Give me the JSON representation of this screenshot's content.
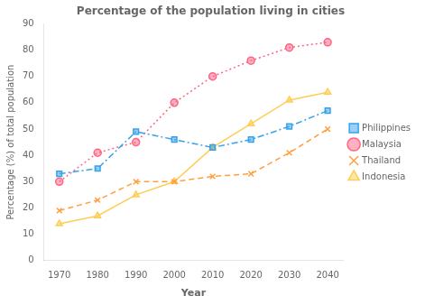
{
  "chart_data": {
    "type": "line",
    "title": "Percentage of the population living in cities",
    "xlabel": "Year",
    "ylabel": "Percentage (%) of total population",
    "x": [
      1970,
      1980,
      1990,
      2000,
      2010,
      2020,
      2030,
      2040
    ],
    "series": [
      {
        "name": "Philippines",
        "values": [
          33,
          35,
          49,
          46,
          43,
          46,
          51,
          57
        ],
        "marker": "square",
        "line_style": "dashdot"
      },
      {
        "name": "Malaysia",
        "values": [
          30,
          41,
          45,
          60,
          70,
          76,
          81,
          83
        ],
        "marker": "circle",
        "line_style": "dotted"
      },
      {
        "name": "Thailand",
        "values": [
          19,
          23,
          30,
          30,
          32,
          33,
          41,
          50
        ],
        "marker": "x",
        "line_style": "dashed"
      },
      {
        "name": "Indonesia",
        "values": [
          14,
          17,
          25,
          30,
          43,
          52,
          61,
          64
        ],
        "marker": "triangle",
        "line_style": "solid"
      }
    ],
    "xlim": [
      1966,
      2044
    ],
    "xticks": [
      1970,
      1980,
      1990,
      2000,
      2010,
      2020,
      2030,
      2040
    ],
    "ylim": [
      0,
      90
    ],
    "yticks": [
      0,
      10,
      20,
      30,
      40,
      50,
      60,
      70,
      80,
      90
    ],
    "grid": false,
    "legend": "right"
  }
}
